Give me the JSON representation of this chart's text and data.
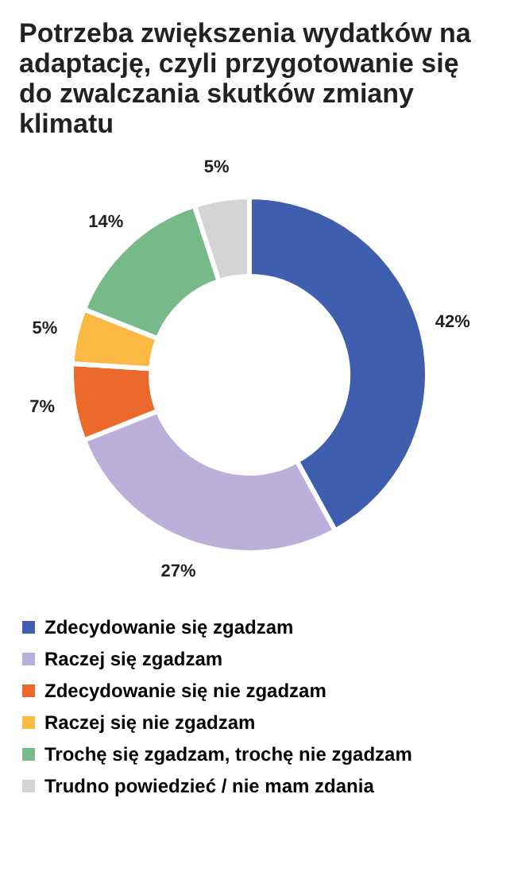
{
  "chart_data": {
    "type": "donut",
    "title": "Potrzeba zwiększenia wydatków na adaptację, czyli przygotowanie się do zwalczania skutków zmiany klimatu",
    "categories": [
      "Zdecydowanie się zgadzam",
      "Raczej się zgadzam",
      "Zdecydowanie się nie zgadzam",
      "Raczej się nie zgadzam",
      "Trochę się zgadzam, trochę nie zgadzam",
      "Trudno powiedzieć / nie mam zdania"
    ],
    "values": [
      42,
      27,
      7,
      5,
      14,
      5
    ],
    "value_labels": [
      "42%",
      "27%",
      "7%",
      "5%",
      "14%",
      "5%"
    ],
    "colors": [
      "#3f5fae",
      "#bbb0da",
      "#eb6a2b",
      "#fbb843",
      "#76b98a",
      "#d4d4d6"
    ],
    "legend": "bottom"
  }
}
